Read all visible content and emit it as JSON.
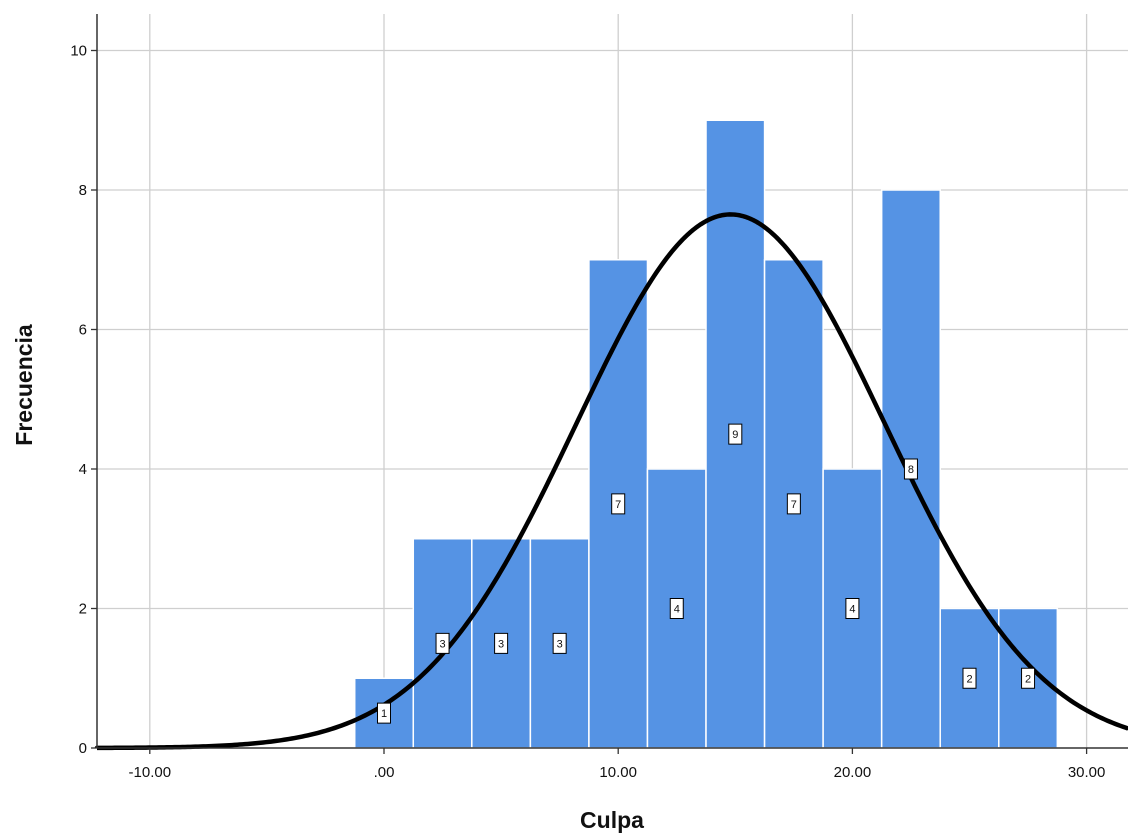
{
  "chart_data": {
    "type": "bar",
    "subtype": "histogram",
    "xlabel": "Culpa",
    "ylabel": "Frecuencia",
    "xlim": [
      -12.5,
      32.0
    ],
    "ylim": [
      0,
      10.5
    ],
    "x_ticks": [
      -10,
      0,
      10,
      20,
      30
    ],
    "x_tick_labels": [
      "-10.00",
      ".00",
      "10.00",
      "20.00",
      "30.00"
    ],
    "y_ticks": [
      0,
      2,
      4,
      6,
      8,
      10
    ],
    "y_tick_labels": [
      "0",
      "2",
      "4",
      "6",
      "8",
      "10"
    ],
    "grid": true,
    "bins": [
      {
        "start": -1.25,
        "end": 1.25,
        "value": 1,
        "label": "1"
      },
      {
        "start": 1.25,
        "end": 3.75,
        "value": 3,
        "label": "3"
      },
      {
        "start": 3.75,
        "end": 6.25,
        "value": 3,
        "label": "3"
      },
      {
        "start": 6.25,
        "end": 8.75,
        "value": 3,
        "label": "3"
      },
      {
        "start": 8.75,
        "end": 11.25,
        "value": 7,
        "label": "7"
      },
      {
        "start": 11.25,
        "end": 13.75,
        "value": 4,
        "label": "4"
      },
      {
        "start": 13.75,
        "end": 16.25,
        "value": 9,
        "label": "9"
      },
      {
        "start": 16.25,
        "end": 18.75,
        "value": 7,
        "label": "7"
      },
      {
        "start": 18.75,
        "end": 21.25,
        "value": 4,
        "label": "4"
      },
      {
        "start": 21.25,
        "end": 23.75,
        "value": 8,
        "label": "8"
      },
      {
        "start": 23.75,
        "end": 26.25,
        "value": 2,
        "label": "2"
      },
      {
        "start": 26.25,
        "end": 28.75,
        "value": 2,
        "label": "2"
      }
    ],
    "normal_curve": {
      "mean": 14.8,
      "sd": 6.6,
      "peak": 7.65
    },
    "colors": {
      "bar": "#5593e4",
      "bar_edge": "#ffffff",
      "curve": "#000000",
      "grid": "#cfcfcf",
      "axis": "#333333"
    }
  }
}
